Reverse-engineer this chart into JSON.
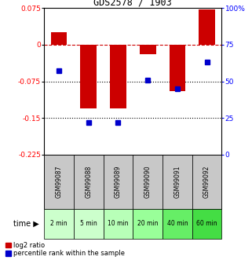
{
  "title": "GDS2578 / 1903",
  "samples": [
    "GSM99087",
    "GSM99088",
    "GSM99089",
    "GSM99090",
    "GSM99091",
    "GSM99092"
  ],
  "times": [
    "2 min",
    "5 min",
    "10 min",
    "20 min",
    "40 min",
    "60 min"
  ],
  "log2_ratio": [
    0.025,
    -0.13,
    -0.13,
    -0.02,
    -0.095,
    0.072
  ],
  "percentile_rank": [
    57,
    22,
    22,
    51,
    45,
    63
  ],
  "ylim_left": [
    -0.225,
    0.075
  ],
  "ylim_right": [
    0,
    100
  ],
  "yticks_left": [
    0.075,
    0,
    -0.075,
    -0.15,
    -0.225
  ],
  "yticks_right": [
    100,
    75,
    50,
    25,
    0
  ],
  "hlines_dotted": [
    -0.075,
    -0.15
  ],
  "hline_dashed": 0,
  "bar_color": "#cc0000",
  "dot_color": "#0000cc",
  "bar_width": 0.55,
  "gsm_bg_color": "#c8c8c8",
  "time_bg_colors": [
    "#ccffcc",
    "#ccffcc",
    "#b8ffb8",
    "#99ff99",
    "#66ee66",
    "#44dd44"
  ],
  "time_label": "time",
  "legend_bar": "log2 ratio",
  "legend_dot": "percentile rank within the sample"
}
